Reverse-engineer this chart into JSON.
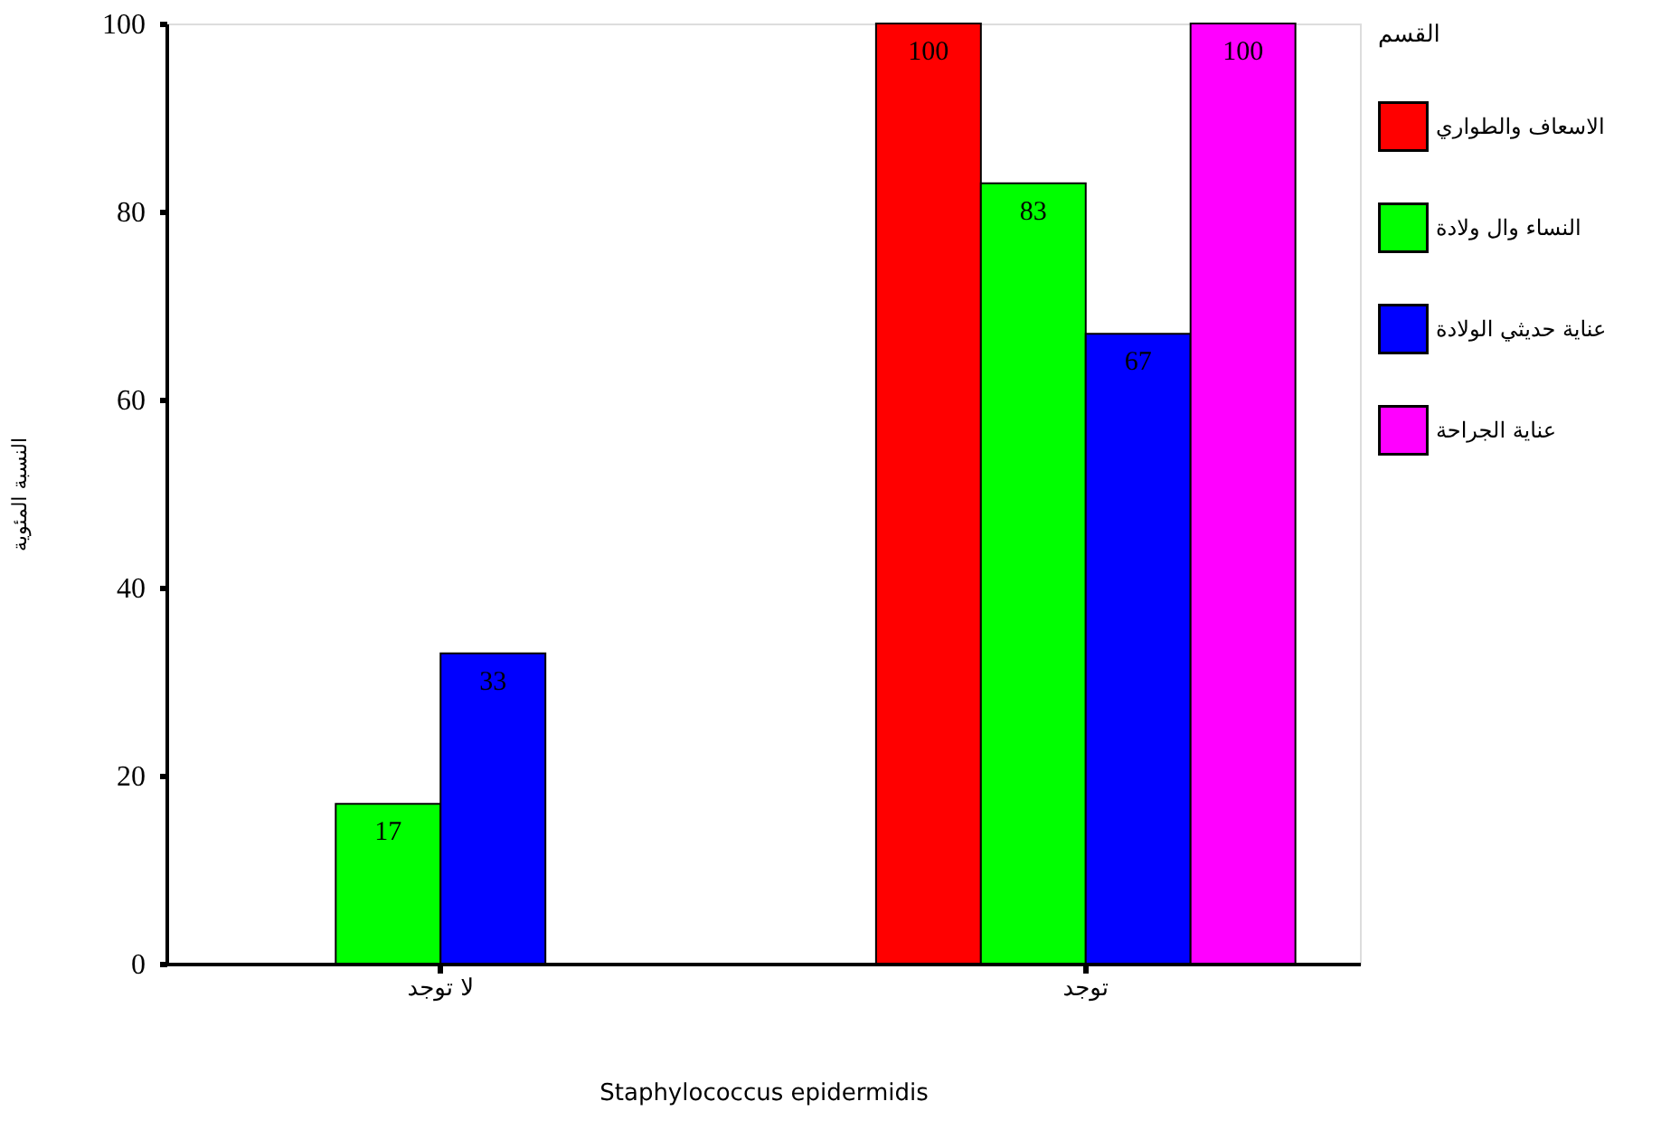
{
  "chart_data": {
    "type": "bar",
    "xlabel": "Staphylococcus epidermidis",
    "ylabel": "النسبة المئوية",
    "legend_title": "القسم",
    "categories": [
      "لا توجد",
      "توجد"
    ],
    "series": [
      {
        "name": "الاسعاف والطواري",
        "color": "#ff0000",
        "values": [
          null,
          100
        ]
      },
      {
        "name": "النساء وال ولادة",
        "color": "#00ff00",
        "values": [
          17,
          83
        ]
      },
      {
        "name": "عناية حديثي الولادة",
        "color": "#0000ff",
        "values": [
          33,
          67
        ]
      },
      {
        "name": "عناية الجراحة",
        "color": "#ff00ff",
        "values": [
          null,
          100
        ]
      }
    ],
    "ylim": [
      0,
      100
    ],
    "yticks": [
      0,
      20,
      40,
      60,
      80,
      100
    ],
    "grid": false,
    "legend": "right",
    "data_labels": true
  }
}
